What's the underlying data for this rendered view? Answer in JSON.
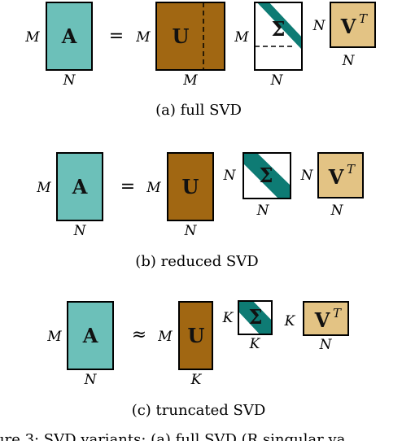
{
  "colors": {
    "A": "#6cc0b9",
    "U": "#a16712",
    "Sigma_band": "#0e7b74",
    "VT": "#e3c384",
    "outline": "#000000"
  },
  "panels": [
    {
      "id": "a",
      "caption": "(a)  full SVD",
      "operator": "=",
      "A": {
        "symbol": "A",
        "rows": "M",
        "cols": "N"
      },
      "U": {
        "symbol": "U",
        "rows": "M",
        "cols": "M"
      },
      "Sigma": {
        "symbol": "Σ",
        "rows": "M",
        "cols": "N"
      },
      "VT": {
        "symbol": "V",
        "superscript": "T",
        "rows": "N",
        "cols": "N"
      }
    },
    {
      "id": "b",
      "caption": "(b)  reduced SVD",
      "operator": "=",
      "A": {
        "symbol": "A",
        "rows": "M",
        "cols": "N"
      },
      "U": {
        "symbol": "U",
        "rows": "M",
        "cols": "N"
      },
      "Sigma": {
        "symbol": "Σ",
        "rows": "N",
        "cols": "N"
      },
      "VT": {
        "symbol": "V",
        "superscript": "T",
        "rows": "N",
        "cols": "N"
      }
    },
    {
      "id": "c",
      "caption": "(c)  truncated SVD",
      "operator": "≈",
      "A": {
        "symbol": "A",
        "rows": "M",
        "cols": "N"
      },
      "U": {
        "symbol": "U",
        "rows": "M",
        "cols": "K"
      },
      "Sigma": {
        "symbol": "Σ",
        "rows": "K",
        "cols": "K"
      },
      "VT": {
        "symbol": "V",
        "superscript": "T",
        "rows": "K",
        "cols": "N"
      }
    }
  ],
  "footer_text": "ure 3: SVD variants: (a) full SVD (R singular va"
}
